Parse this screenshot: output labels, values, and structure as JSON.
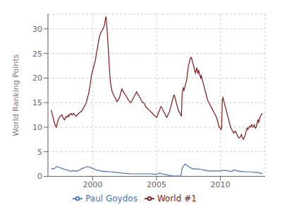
{
  "chart_data": {
    "type": "line",
    "ylabel": "World Ranking Points",
    "xlim": [
      1996.5,
      2013.5
    ],
    "xticks": [
      2000,
      2005,
      2010
    ],
    "ylim": [
      0,
      33
    ],
    "yticks": [
      0,
      5,
      10,
      15,
      20,
      25,
      30
    ],
    "grid": true,
    "legend": "bottom",
    "series": [
      {
        "name": "Paul Goydos",
        "color": "#4472c4",
        "x": [
          1996.75,
          1996.85,
          1996.95,
          1997.0,
          1997.1,
          1997.2,
          1997.3,
          1997.4,
          1997.5,
          1997.6,
          1997.7,
          1997.8,
          1997.9,
          1998.0,
          1998.1,
          1998.2,
          1998.3,
          1998.4,
          1998.5,
          1998.6,
          1998.7,
          1998.8,
          1998.9,
          1999.0,
          1999.1,
          1999.2,
          1999.3,
          1999.4,
          1999.5,
          1999.6,
          1999.7,
          1999.8,
          1999.9,
          2000.0,
          2000.1,
          2000.2,
          2000.3,
          2000.4,
          2000.5,
          2000.6,
          2000.7,
          2000.8,
          2000.9,
          2001.0,
          2001.1,
          2001.2,
          2001.3,
          2001.4,
          2001.5,
          2001.6,
          2001.7,
          2001.8,
          2001.9,
          2002.0,
          2002.1,
          2002.2,
          2002.3,
          2002.4,
          2002.5,
          2002.6,
          2002.7,
          2002.8,
          2002.9,
          2003.0,
          2003.1,
          2003.2,
          2003.3,
          2003.4,
          2003.5,
          2003.6,
          2003.7,
          2003.8,
          2003.9,
          2004.0,
          2004.1,
          2004.2,
          2004.3,
          2004.4,
          2004.5,
          2004.6,
          2004.7,
          2004.8,
          2004.9,
          2005.0,
          2005.1,
          2005.2,
          2005.25,
          2005.3,
          2005.35,
          2005.4,
          2005.5,
          2005.6,
          2005.7,
          2005.8,
          2005.9,
          2006.0,
          2006.1,
          2006.2,
          2006.3,
          2006.4,
          2006.5,
          2006.6,
          2006.7,
          2006.8,
          2006.9,
          2007.0,
          2007.05,
          2007.1,
          2007.15,
          2007.2,
          2007.25,
          2007.3,
          2007.35,
          2007.4,
          2007.45,
          2007.5,
          2007.55,
          2007.6,
          2007.7,
          2007.8,
          2007.9,
          2008.0,
          2008.1,
          2008.2,
          2008.3,
          2008.4,
          2008.5,
          2008.6,
          2008.7,
          2008.8,
          2008.9,
          2009.0,
          2009.1,
          2009.2,
          2009.3,
          2009.4,
          2009.5,
          2009.6,
          2009.7,
          2009.8,
          2009.9,
          2010.0,
          2010.1,
          2010.2,
          2010.3,
          2010.4,
          2010.5,
          2010.6,
          2010.7,
          2010.8,
          2010.9,
          2011.0,
          2011.05,
          2011.1,
          2011.15,
          2011.2,
          2011.25,
          2011.3,
          2011.35,
          2011.4,
          2011.45,
          2011.5,
          2011.55,
          2011.6,
          2011.7,
          2011.8,
          2011.9,
          2012.0,
          2012.1,
          2012.2,
          2012.3,
          2012.4,
          2012.5,
          2012.6,
          2012.7,
          2012.8,
          2012.9,
          2013.0,
          2013.1,
          2013.2,
          2013.3
        ],
        "values": [
          1.5,
          1.6,
          1.5,
          1.6,
          1.8,
          2.0,
          1.9,
          1.8,
          1.7,
          1.6,
          1.5,
          1.4,
          1.3,
          1.3,
          1.2,
          1.1,
          1.0,
          1.1,
          1.2,
          1.1,
          1.0,
          1.1,
          1.2,
          1.3,
          1.5,
          1.6,
          1.7,
          1.8,
          1.9,
          2.0,
          1.9,
          1.8,
          1.7,
          1.6,
          1.5,
          1.4,
          1.3,
          1.2,
          1.2,
          1.1,
          1.1,
          1.0,
          1.0,
          1.0,
          1.0,
          0.95,
          0.9,
          0.9,
          0.9,
          0.85,
          0.85,
          0.8,
          0.8,
          0.75,
          0.7,
          0.7,
          0.65,
          0.65,
          0.6,
          0.6,
          0.55,
          0.55,
          0.5,
          0.5,
          0.5,
          0.5,
          0.5,
          0.5,
          0.5,
          0.5,
          0.5,
          0.5,
          0.5,
          0.5,
          0.5,
          0.5,
          0.5,
          0.5,
          0.5,
          0.5,
          0.45,
          0.45,
          0.4,
          0.4,
          0.5,
          0.6,
          0.65,
          0.6,
          0.55,
          0.5,
          0.45,
          0.4,
          0.35,
          0.3,
          0.25,
          0.2,
          0.15,
          0.1,
          0.05,
          0.05,
          0.05,
          0.05,
          0.05,
          0.05,
          0.05,
          1.5,
          1.8,
          2.0,
          2.2,
          2.4,
          2.5,
          2.4,
          2.3,
          2.2,
          2.1,
          2.0,
          1.9,
          1.8,
          1.7,
          1.6,
          1.5,
          1.5,
          1.5,
          1.5,
          1.5,
          1.4,
          1.4,
          1.3,
          1.3,
          1.2,
          1.2,
          1.1,
          1.1,
          1.1,
          1.1,
          1.1,
          1.1,
          1.1,
          1.1,
          1.1,
          1.1,
          1.1,
          1.2,
          1.2,
          1.2,
          1.2,
          1.2,
          1.1,
          1.1,
          1.0,
          1.0,
          1.2,
          1.3,
          1.3,
          1.2,
          1.2,
          1.2,
          1.1,
          1.1,
          1.1,
          1.1,
          1.0,
          1.0,
          1.0,
          1.0,
          1.0,
          0.9,
          0.9,
          0.9,
          0.9,
          0.9,
          0.9,
          0.9,
          0.8,
          0.8,
          0.8,
          0.8,
          0.7,
          0.7,
          0.6,
          0.6
        ]
      },
      {
        "name": "World #1",
        "color": "#8b1414",
        "x": [
          1996.75,
          1996.85,
          1996.95,
          1997.0,
          1997.1,
          1997.15,
          1997.2,
          1997.3,
          1997.4,
          1997.5,
          1997.6,
          1997.7,
          1997.8,
          1997.85,
          1997.9,
          1998.0,
          1998.1,
          1998.15,
          1998.2,
          1998.3,
          1998.4,
          1998.5,
          1998.6,
          1998.7,
          1998.8,
          1998.9,
          1999.0,
          1999.1,
          1999.2,
          1999.3,
          1999.4,
          1999.5,
          1999.6,
          1999.7,
          1999.8,
          1999.9,
          2000.0,
          2000.1,
          2000.2,
          2000.3,
          2000.4,
          2000.5,
          2000.6,
          2000.7,
          2000.8,
          2000.9,
          2001.0,
          2001.05,
          2001.1,
          2001.15,
          2001.2,
          2001.25,
          2001.3,
          2001.35,
          2001.4,
          2001.5,
          2001.6,
          2001.7,
          2001.8,
          2001.9,
          2002.0,
          2002.1,
          2002.15,
          2002.2,
          2002.25,
          2002.3,
          2002.35,
          2002.4,
          2002.5,
          2002.6,
          2002.7,
          2002.8,
          2002.9,
          2003.0,
          2003.1,
          2003.2,
          2003.3,
          2003.4,
          2003.45,
          2003.5,
          2003.6,
          2003.7,
          2003.8,
          2003.9,
          2004.0,
          2004.1,
          2004.2,
          2004.3,
          2004.4,
          2004.5,
          2004.6,
          2004.7,
          2004.8,
          2004.9,
          2005.0,
          2005.05,
          2005.1,
          2005.15,
          2005.2,
          2005.25,
          2005.3,
          2005.35,
          2005.4,
          2005.45,
          2005.5,
          2005.55,
          2005.6,
          2005.65,
          2005.7,
          2005.75,
          2005.8,
          2005.85,
          2005.9,
          2005.95,
          2006.0,
          2006.05,
          2006.1,
          2006.15,
          2006.2,
          2006.25,
          2006.3,
          2006.35,
          2006.4,
          2006.45,
          2006.5,
          2006.55,
          2006.6,
          2006.65,
          2006.7,
          2006.75,
          2006.8,
          2006.85,
          2006.9,
          2006.95,
          2007.0,
          2007.05,
          2007.1,
          2007.15,
          2007.2,
          2007.25,
          2007.3,
          2007.35,
          2007.4,
          2007.45,
          2007.5,
          2007.55,
          2007.6,
          2007.65,
          2007.7,
          2007.75,
          2007.8,
          2007.85,
          2007.9,
          2007.95,
          2008.0,
          2008.05,
          2008.1,
          2008.15,
          2008.2,
          2008.25,
          2008.3,
          2008.35,
          2008.4,
          2008.45,
          2008.5,
          2008.55,
          2008.6,
          2008.65,
          2008.7,
          2008.75,
          2008.8,
          2008.85,
          2008.9,
          2008.95,
          2009.0,
          2009.1,
          2009.2,
          2009.3,
          2009.4,
          2009.5,
          2009.6,
          2009.7,
          2009.8,
          2009.9,
          2010.0,
          2010.05,
          2010.1,
          2010.15,
          2010.2,
          2010.25,
          2010.3,
          2010.35,
          2010.4,
          2010.45,
          2010.5,
          2010.55,
          2010.6,
          2010.65,
          2010.7,
          2010.75,
          2010.8,
          2010.85,
          2010.9,
          2010.95,
          2011.0,
          2011.05,
          2011.1,
          2011.15,
          2011.2,
          2011.25,
          2011.3,
          2011.35,
          2011.4,
          2011.45,
          2011.5,
          2011.55,
          2011.6,
          2011.65,
          2011.7,
          2011.75,
          2011.8,
          2011.85,
          2011.9,
          2011.95,
          2012.0,
          2012.05,
          2012.1,
          2012.15,
          2012.2,
          2012.25,
          2012.3,
          2012.35,
          2012.4,
          2012.45,
          2012.5,
          2012.55,
          2012.6,
          2012.65,
          2012.7,
          2012.75,
          2012.8,
          2012.85,
          2012.9,
          2012.95,
          2013.0,
          2013.05,
          2013.1,
          2013.2,
          2013.3
        ],
        "values": [
          13.5,
          12.5,
          11.5,
          11.0,
          10.2,
          10.0,
          10.5,
          11.5,
          12.0,
          12.3,
          12.5,
          11.8,
          11.5,
          11.8,
          12.2,
          12.0,
          12.5,
          12.2,
          12.5,
          12.8,
          12.5,
          12.8,
          12.5,
          12.2,
          12.5,
          12.8,
          13.0,
          13.2,
          13.5,
          14.0,
          14.5,
          15.0,
          16.0,
          17.0,
          18.5,
          20.5,
          21.5,
          22.5,
          23.5,
          25.0,
          26.5,
          28.0,
          29.0,
          29.5,
          30.0,
          30.5,
          32.0,
          32.5,
          31.0,
          29.0,
          27.0,
          25.0,
          22.5,
          20.5,
          19.0,
          17.5,
          16.8,
          16.2,
          15.8,
          15.2,
          15.5,
          16.0,
          16.5,
          17.0,
          17.5,
          17.8,
          17.5,
          17.2,
          16.8,
          16.5,
          16.0,
          15.5,
          15.2,
          15.0,
          15.5,
          16.0,
          16.5,
          17.0,
          17.2,
          16.8,
          16.5,
          16.0,
          15.5,
          15.0,
          15.0,
          14.5,
          14.0,
          13.8,
          13.5,
          13.3,
          13.0,
          12.8,
          12.5,
          12.2,
          12.0,
          12.2,
          12.5,
          13.0,
          13.2,
          13.5,
          14.0,
          14.2,
          14.0,
          13.8,
          13.5,
          13.2,
          13.0,
          12.8,
          12.5,
          12.2,
          12.0,
          12.2,
          12.5,
          12.8,
          13.0,
          13.5,
          14.0,
          14.5,
          15.0,
          15.5,
          16.0,
          16.5,
          16.5,
          16.0,
          15.5,
          15.0,
          14.5,
          14.0,
          13.5,
          13.2,
          13.0,
          12.8,
          12.5,
          12.2,
          16.5,
          17.5,
          18.0,
          17.5,
          18.0,
          18.5,
          19.0,
          19.5,
          20.5,
          21.5,
          22.5,
          23.0,
          23.5,
          24.0,
          24.2,
          24.0,
          23.5,
          23.0,
          22.5,
          22.0,
          21.5,
          21.0,
          21.5,
          22.0,
          21.5,
          21.0,
          21.5,
          21.0,
          20.5,
          20.0,
          20.5,
          20.0,
          19.5,
          19.0,
          18.5,
          18.0,
          17.5,
          17.0,
          16.5,
          16.0,
          15.5,
          15.0,
          14.5,
          14.0,
          13.5,
          13.0,
          12.5,
          12.0,
          11.0,
          10.0,
          9.8,
          9.5,
          10.0,
          15.5,
          16.0,
          15.5,
          15.0,
          14.5,
          14.0,
          13.5,
          13.0,
          12.5,
          12.0,
          11.5,
          11.0,
          10.5,
          10.0,
          9.8,
          9.5,
          9.2,
          9.0,
          8.8,
          9.0,
          9.2,
          9.0,
          8.8,
          8.5,
          8.2,
          8.0,
          7.8,
          7.8,
          8.0,
          8.2,
          8.5,
          8.0,
          7.8,
          7.5,
          7.8,
          8.0,
          8.5,
          9.0,
          9.5,
          9.8,
          9.5,
          9.8,
          10.0,
          10.2,
          10.0,
          10.2,
          10.5,
          10.2,
          10.0,
          10.2,
          10.5,
          10.0,
          9.8,
          10.0,
          10.5,
          11.0,
          11.5,
          11.0,
          11.5,
          12.0,
          12.5,
          12.8
        ]
      }
    ]
  }
}
